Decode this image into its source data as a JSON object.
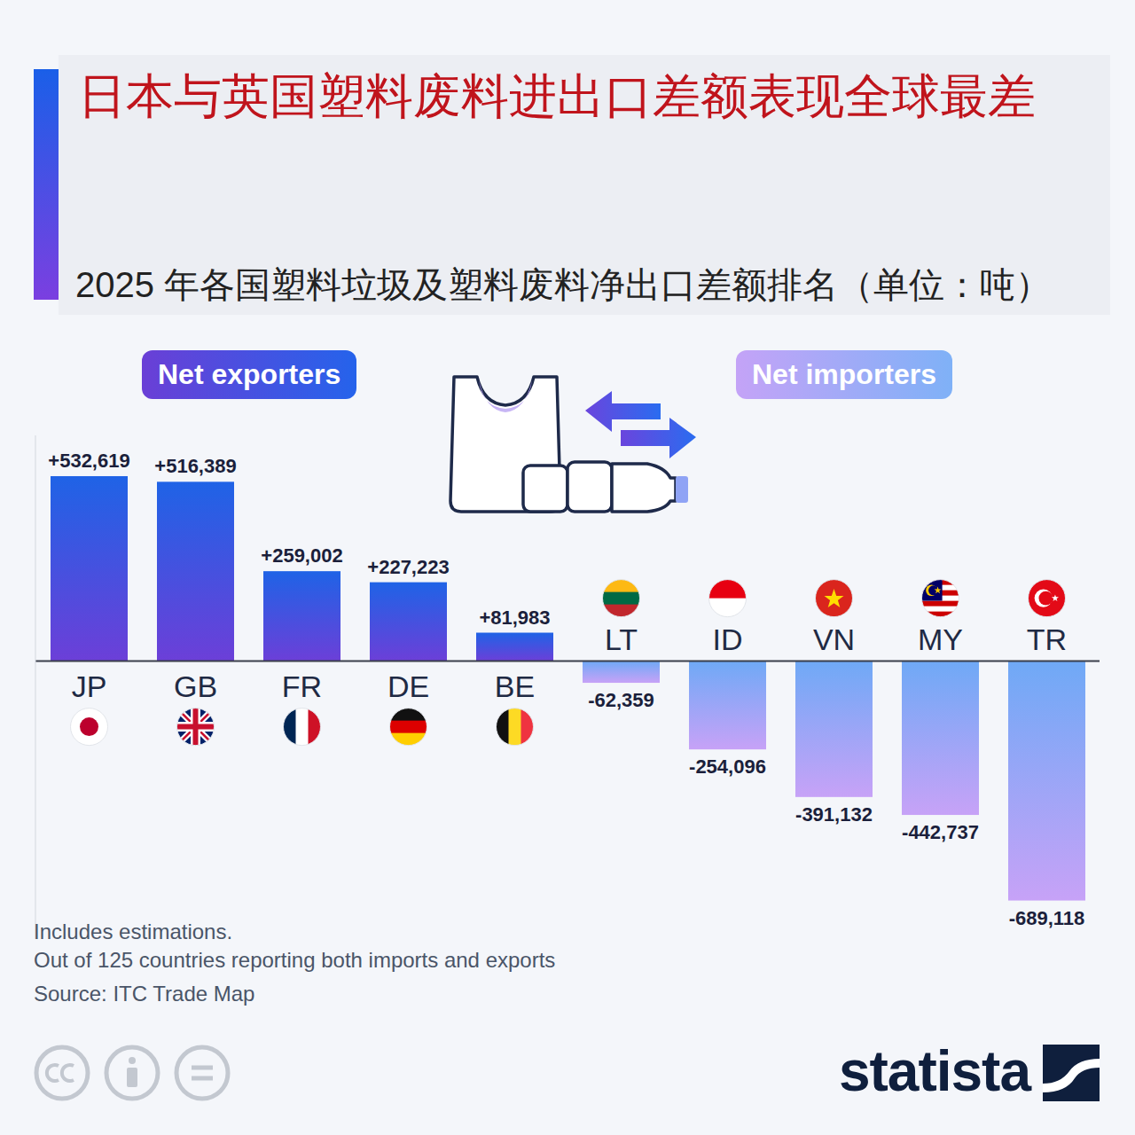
{
  "chart_data": {
    "type": "bar",
    "title": "日本与英国塑料废料进出口差额表现全球最差",
    "subtitle": "2025 年各国塑料垃圾及塑料废料净出口差额排名（单位：吨）",
    "badges": {
      "exporters": "Net exporters",
      "importers": "Net importers"
    },
    "notes": [
      "Includes estimations.",
      "Out of 125 countries reporting both imports and exports"
    ],
    "source": "Source: ITC Trade Map",
    "logo": "statista",
    "categories": [
      "JP",
      "GB",
      "FR",
      "DE",
      "BE",
      "LT",
      "ID",
      "VN",
      "MY",
      "TR"
    ],
    "values": [
      532619,
      516389,
      259002,
      227223,
      81983,
      -62359,
      -254096,
      -391132,
      -442737,
      -689118
    ],
    "value_labels": [
      "+532,619",
      "+516,389",
      "+259,002",
      "+227,223",
      "+81,983",
      "-62,359",
      "-254,096",
      "-391,132",
      "-442,737",
      "-689,118"
    ],
    "colors": [
      "#1f63e6",
      "#1f63e6",
      "#1f63e6",
      "#1f63e6",
      "#1f63e6",
      "#6fa9f6",
      "#6fa9f6",
      "#6fa9f6",
      "#6fa9f6",
      "#6fa9f6"
    ],
    "ylim": [
      -800000,
      650000
    ],
    "data_labels": true,
    "tick_labels": "x",
    "grid": false
  }
}
